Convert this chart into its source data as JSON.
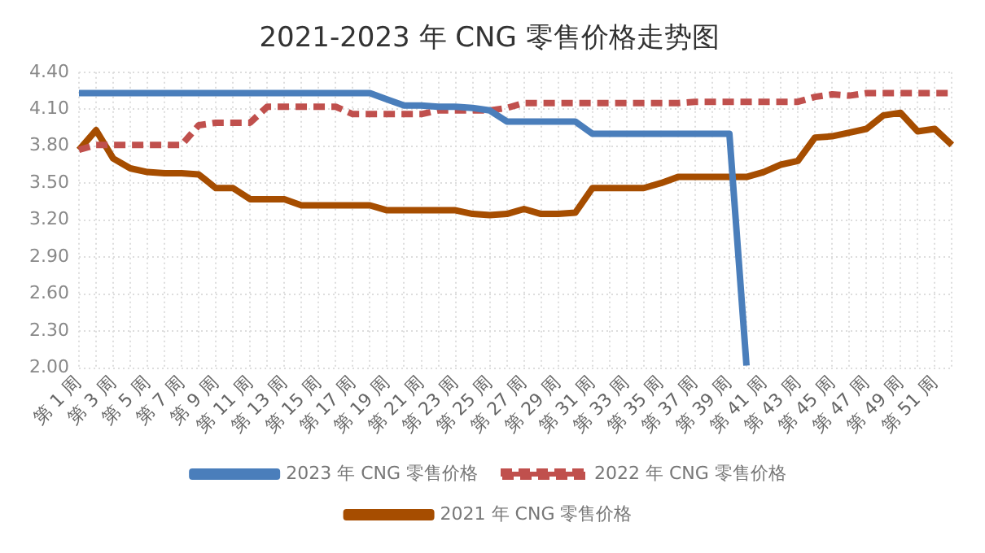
{
  "chart_data": {
    "type": "line",
    "title": "2021-2023 年 CNG 零售价格走势图",
    "categories": [
      "第 1 周",
      null,
      "第 3 周",
      null,
      "第 5 周",
      null,
      "第 7 周",
      null,
      "第 9 周",
      null,
      "第 11 周",
      null,
      "第 13 周",
      null,
      "第 15 周",
      null,
      "第 17 周",
      null,
      "第 19 周",
      null,
      "第 21 周",
      null,
      "第 23 周",
      null,
      "第 25 周",
      null,
      "第 27 周",
      null,
      "第 29 周",
      null,
      "第 31 周",
      null,
      "第 33 周",
      null,
      "第 35 周",
      null,
      "第 37 周",
      null,
      "第 39 周",
      null,
      "第 41 周",
      null,
      "第 43 周",
      null,
      "第 45 周",
      null,
      "第 47 周",
      null,
      "第 49 周",
      null,
      "第 51 周",
      null
    ],
    "series": [
      {
        "name": "2023 年 CNG 零售价格",
        "color": "#4a7ebb",
        "line_style": "solid",
        "values": [
          4.23,
          4.23,
          4.23,
          4.23,
          4.23,
          4.23,
          4.23,
          4.23,
          4.23,
          4.23,
          4.23,
          4.23,
          4.23,
          4.23,
          4.23,
          4.23,
          4.23,
          4.23,
          4.18,
          4.13,
          4.13,
          4.12,
          4.12,
          4.11,
          4.09,
          4.0,
          4.0,
          4.0,
          4.0,
          4.0,
          3.9,
          3.9,
          3.9,
          3.9,
          3.9,
          3.9,
          3.9,
          3.9,
          3.9,
          2.02,
          null,
          null,
          null,
          null,
          null,
          null,
          null,
          null,
          null,
          null,
          null,
          null
        ]
      },
      {
        "name": "2022 年 CNG 零售价格",
        "color": "#c0504d",
        "line_style": "dashed",
        "values": [
          3.77,
          3.81,
          3.81,
          3.81,
          3.81,
          3.81,
          3.81,
          3.97,
          3.99,
          3.99,
          3.99,
          4.12,
          4.12,
          4.12,
          4.12,
          4.12,
          4.06,
          4.06,
          4.06,
          4.06,
          4.06,
          4.09,
          4.09,
          4.09,
          4.09,
          4.11,
          4.15,
          4.15,
          4.15,
          4.15,
          4.15,
          4.15,
          4.15,
          4.15,
          4.15,
          4.15,
          4.16,
          4.16,
          4.16,
          4.16,
          4.16,
          4.16,
          4.16,
          4.2,
          4.22,
          4.21,
          4.23,
          4.23,
          4.23,
          4.23,
          4.23,
          4.23
        ]
      },
      {
        "name": "2021 年 CNG 零售价格",
        "color": "#a64d00",
        "line_style": "solid",
        "values": [
          3.77,
          3.93,
          3.7,
          3.62,
          3.59,
          3.58,
          3.58,
          3.57,
          3.46,
          3.46,
          3.37,
          3.37,
          3.37,
          3.32,
          3.32,
          3.32,
          3.32,
          3.32,
          3.28,
          3.28,
          3.28,
          3.28,
          3.28,
          3.25,
          3.24,
          3.25,
          3.29,
          3.25,
          3.25,
          3.26,
          3.46,
          3.46,
          3.46,
          3.46,
          3.5,
          3.55,
          3.55,
          3.55,
          3.55,
          3.55,
          3.59,
          3.65,
          3.68,
          3.87,
          3.88,
          3.91,
          3.94,
          4.05,
          4.07,
          3.92,
          3.94,
          3.81
        ]
      }
    ],
    "ylim": [
      2.0,
      4.4
    ],
    "yticks": [
      {
        "value": 2.0,
        "label": "2.00"
      },
      {
        "value": 2.3,
        "label": "2.30"
      },
      {
        "value": 2.6,
        "label": "2.60"
      },
      {
        "value": 2.9,
        "label": "2.90"
      },
      {
        "value": 3.2,
        "label": "3.20"
      },
      {
        "value": 3.5,
        "label": "3.50"
      },
      {
        "value": 3.8,
        "label": "3.80"
      },
      {
        "value": 4.1,
        "label": "4.10"
      },
      {
        "value": 4.4,
        "label": "4.40"
      }
    ],
    "grid": true,
    "legend": "bottom",
    "marker": "none"
  }
}
